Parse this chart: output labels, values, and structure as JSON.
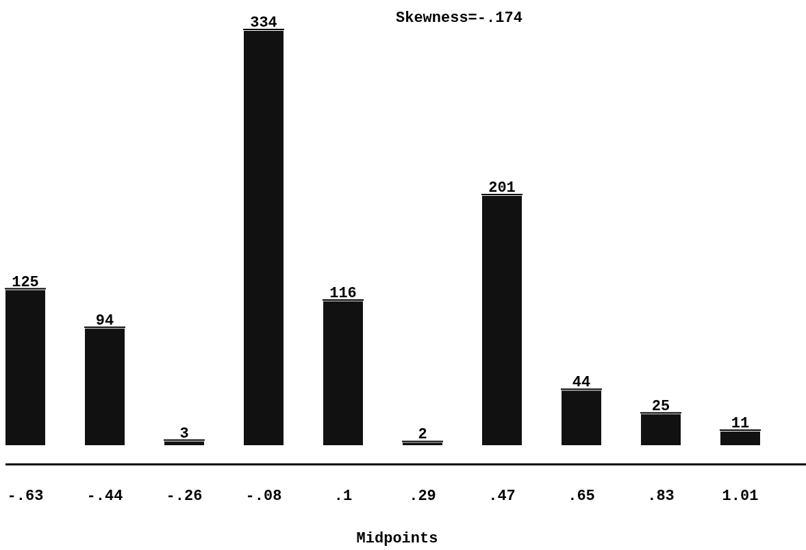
{
  "chart_data": {
    "type": "bar",
    "categories": [
      "-.63",
      "-.44",
      "-.26",
      "-.08",
      ".1",
      ".29",
      ".47",
      ".65",
      ".83",
      "1.01"
    ],
    "values": [
      125,
      94,
      3,
      334,
      116,
      2,
      201,
      44,
      25,
      11
    ],
    "color": "#111111",
    "data_labels": true,
    "xlabel": "Midpoints",
    "annotations": [
      "Skewness=-.174"
    ]
  }
}
